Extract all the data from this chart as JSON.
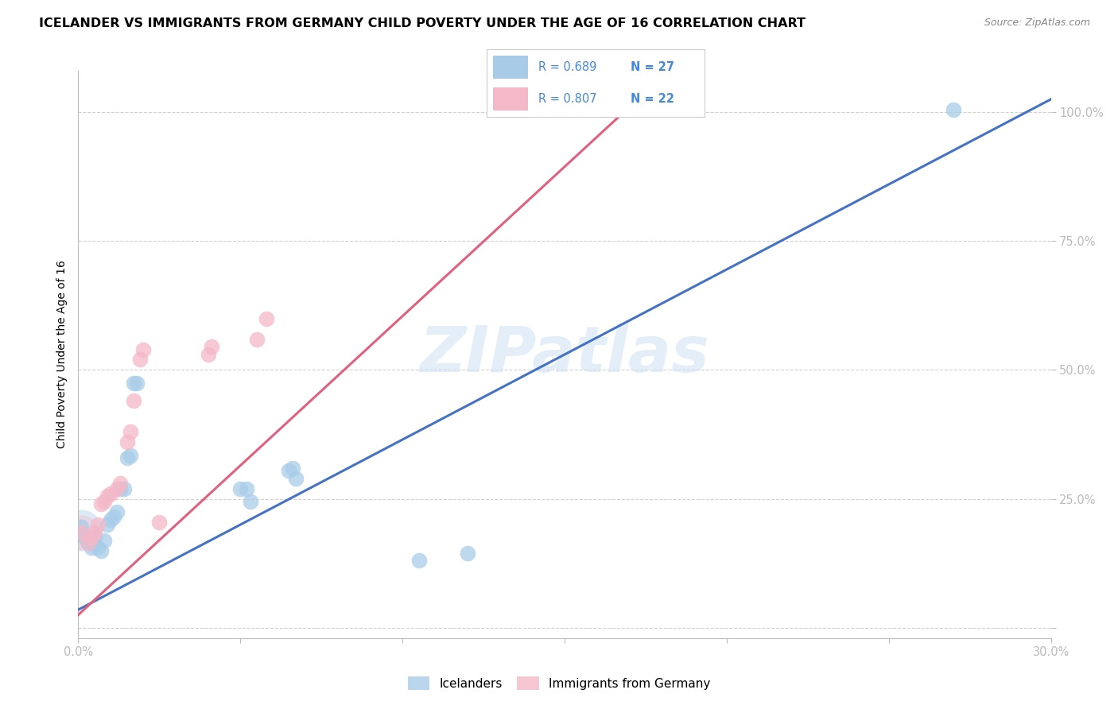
{
  "title": "ICELANDER VS IMMIGRANTS FROM GERMANY CHILD POVERTY UNDER THE AGE OF 16 CORRELATION CHART",
  "source": "Source: ZipAtlas.com",
  "ylabel_label": "Child Poverty Under the Age of 16",
  "xlim": [
    0.0,
    0.3
  ],
  "ylim": [
    -0.02,
    1.08
  ],
  "x_ticks": [
    0.0,
    0.05,
    0.1,
    0.15,
    0.2,
    0.25,
    0.3
  ],
  "x_tick_labels": [
    "0.0%",
    "",
    "",
    "",
    "",
    "",
    "30.0%"
  ],
  "y_ticks": [
    0.0,
    0.25,
    0.5,
    0.75,
    1.0
  ],
  "y_tick_labels": [
    "",
    "25.0%",
    "50.0%",
    "75.0%",
    "100.0%"
  ],
  "watermark": "ZIPatlas",
  "legend_r1": "R = 0.689",
  "legend_n1": "N = 27",
  "legend_r2": "R = 0.807",
  "legend_n2": "N = 22",
  "legend_label1": "Icelanders",
  "legend_label2": "Immigrants from Germany",
  "blue_color": "#a8cce8",
  "pink_color": "#f4b8c8",
  "blue_line_color": "#4472c4",
  "pink_line_color": "#e06080",
  "blue_scatter": [
    [
      0.001,
      0.195
    ],
    [
      0.002,
      0.175
    ],
    [
      0.003,
      0.165
    ],
    [
      0.004,
      0.155
    ],
    [
      0.005,
      0.175
    ],
    [
      0.006,
      0.155
    ],
    [
      0.007,
      0.15
    ],
    [
      0.008,
      0.17
    ],
    [
      0.009,
      0.2
    ],
    [
      0.01,
      0.21
    ],
    [
      0.011,
      0.215
    ],
    [
      0.012,
      0.225
    ],
    [
      0.013,
      0.27
    ],
    [
      0.014,
      0.27
    ],
    [
      0.015,
      0.33
    ],
    [
      0.016,
      0.335
    ],
    [
      0.017,
      0.475
    ],
    [
      0.018,
      0.475
    ],
    [
      0.05,
      0.27
    ],
    [
      0.052,
      0.27
    ],
    [
      0.053,
      0.245
    ],
    [
      0.065,
      0.305
    ],
    [
      0.066,
      0.31
    ],
    [
      0.067,
      0.29
    ],
    [
      0.105,
      0.13
    ],
    [
      0.12,
      0.145
    ],
    [
      0.27,
      1.005
    ]
  ],
  "pink_scatter": [
    [
      0.001,
      0.185
    ],
    [
      0.003,
      0.165
    ],
    [
      0.004,
      0.175
    ],
    [
      0.005,
      0.185
    ],
    [
      0.006,
      0.2
    ],
    [
      0.007,
      0.24
    ],
    [
      0.008,
      0.245
    ],
    [
      0.009,
      0.255
    ],
    [
      0.01,
      0.26
    ],
    [
      0.012,
      0.27
    ],
    [
      0.013,
      0.28
    ],
    [
      0.015,
      0.36
    ],
    [
      0.016,
      0.38
    ],
    [
      0.017,
      0.44
    ],
    [
      0.019,
      0.52
    ],
    [
      0.02,
      0.54
    ],
    [
      0.025,
      0.205
    ],
    [
      0.04,
      0.53
    ],
    [
      0.041,
      0.545
    ],
    [
      0.055,
      0.56
    ],
    [
      0.058,
      0.6
    ],
    [
      0.165,
      1.005
    ]
  ],
  "blue_big_scatter": [
    [
      0.001,
      0.195
    ]
  ],
  "pink_big_scatter": [
    [
      0.001,
      0.185
    ]
  ],
  "blue_line_x": [
    0.0,
    0.3
  ],
  "blue_line_y": [
    0.035,
    1.025
  ],
  "pink_line_x": [
    0.0,
    0.17
  ],
  "pink_line_y": [
    0.025,
    1.01
  ],
  "title_fontsize": 11.5,
  "source_fontsize": 9,
  "tick_fontsize": 10.5,
  "ylabel_fontsize": 10
}
